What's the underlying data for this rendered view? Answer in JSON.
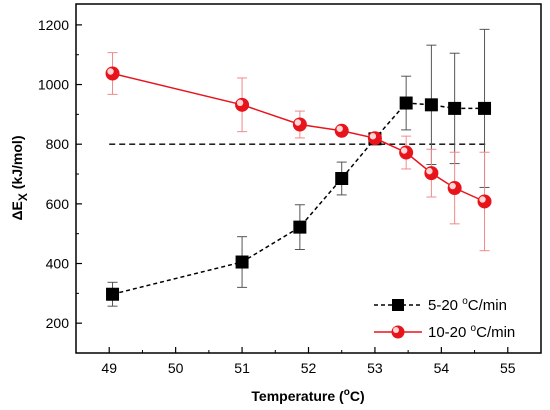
{
  "chart_data": {
    "type": "line",
    "xlabel": {
      "main": "Temperature (",
      "sup": "o",
      "unit": "C)"
    },
    "ylabel": {
      "main": "ΔE",
      "sub": "X",
      "unit": " (kJ/mol)"
    },
    "xlim": [
      48.5,
      55.5
    ],
    "ylim": [
      100,
      1270
    ],
    "xticks": [
      49,
      50,
      51,
      52,
      53,
      54,
      55
    ],
    "yticks": [
      200,
      400,
      600,
      800,
      1000,
      1200
    ],
    "reference_line": {
      "y": 800,
      "x_range": [
        49,
        54.7
      ],
      "style": "dashed",
      "color": "#000000"
    },
    "legend": {
      "position": "bottom-right"
    },
    "series": [
      {
        "name": "5-20 °C/min",
        "legend_parts": {
          "pre": "5-20 ",
          "sup": "o",
          "post": "C/min"
        },
        "color": "#000000",
        "line_style": "dashed",
        "marker": "square",
        "points": [
          {
            "x": 49.05,
            "y": 297,
            "err": 40
          },
          {
            "x": 51.0,
            "y": 405,
            "err": 85
          },
          {
            "x": 51.87,
            "y": 522,
            "err": 75
          },
          {
            "x": 52.5,
            "y": 685,
            "err": 55
          },
          {
            "x": 53.0,
            "y": 818,
            "err": 0
          },
          {
            "x": 53.47,
            "y": 938,
            "err": 90
          },
          {
            "x": 53.85,
            "y": 932,
            "err": 200
          },
          {
            "x": 54.2,
            "y": 920,
            "err": 185
          },
          {
            "x": 54.65,
            "y": 920,
            "err": 265
          }
        ]
      },
      {
        "name": "10-20 °C/min",
        "legend_parts": {
          "pre": "10-20 ",
          "sup": "o",
          "post": "C/min"
        },
        "color": "#e8141c",
        "line_style": "solid",
        "marker": "circle",
        "points": [
          {
            "x": 49.05,
            "y": 1037,
            "err": 70
          },
          {
            "x": 51.0,
            "y": 932,
            "err": 90
          },
          {
            "x": 51.87,
            "y": 866,
            "err": 45
          },
          {
            "x": 52.5,
            "y": 845,
            "err": 0
          },
          {
            "x": 53.0,
            "y": 820,
            "err": 0
          },
          {
            "x": 53.47,
            "y": 772,
            "err": 55
          },
          {
            "x": 53.85,
            "y": 703,
            "err": 80
          },
          {
            "x": 54.2,
            "y": 653,
            "err": 120
          },
          {
            "x": 54.65,
            "y": 608,
            "err": 165
          }
        ]
      }
    ]
  }
}
